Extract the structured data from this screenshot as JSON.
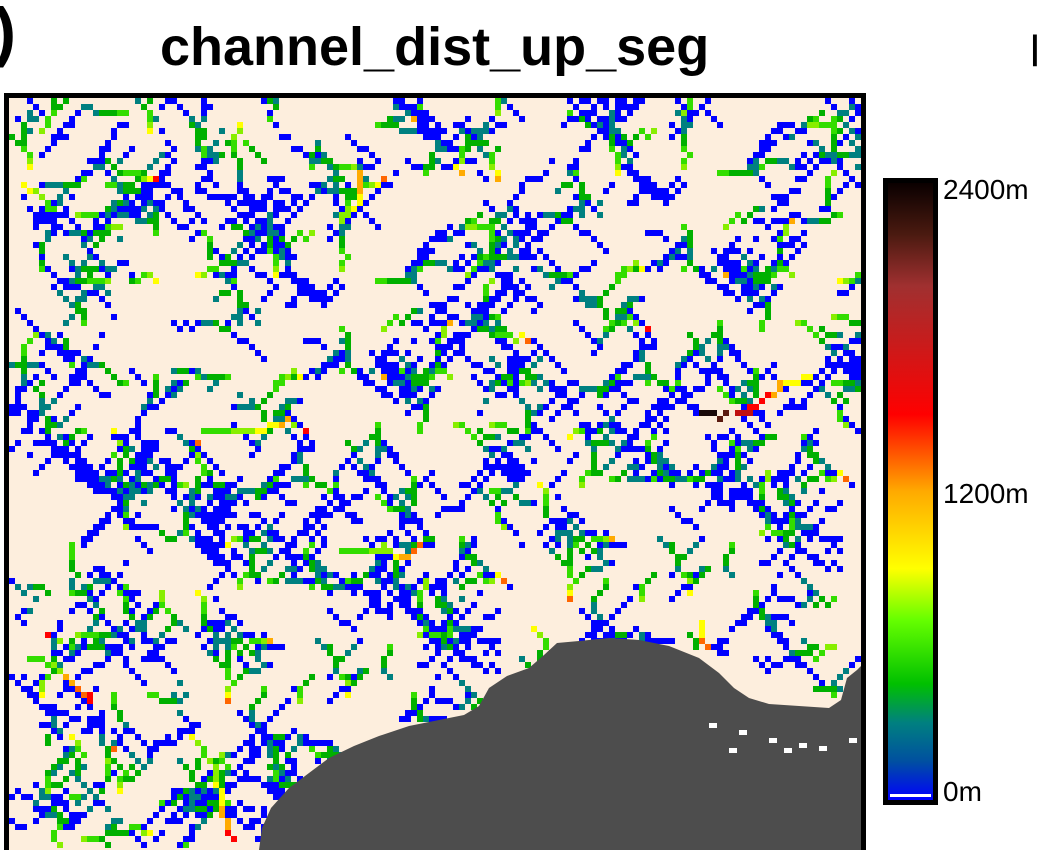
{
  "figure": {
    "panel_letter": ")",
    "title": "channel_dist_up_seg",
    "next_panel_letter": "l"
  },
  "map": {
    "background_color": "#fdeedd",
    "water_color": "#4d4d4d",
    "frame_color": "#000000",
    "channel_colors": [
      "#0000ff",
      "#008080",
      "#00b000",
      "#33dd00",
      "#88ee00",
      "#ffff00",
      "#ffaa00",
      "#ff6600",
      "#ff0000",
      "#c01010",
      "#5a1a10",
      "#1a0a0a"
    ]
  },
  "colorbar": {
    "max_label": "2400m",
    "mid_label": "1200m",
    "min_label": "0m",
    "min_value": 0,
    "mid_value": 1200,
    "max_value": 2400,
    "unit": "m",
    "stops": [
      {
        "value": 0,
        "color": "#0000ff"
      },
      {
        "value": 150,
        "color": "#0050a0"
      },
      {
        "value": 300,
        "color": "#008080"
      },
      {
        "value": 450,
        "color": "#00c000"
      },
      {
        "value": 700,
        "color": "#66ff00"
      },
      {
        "value": 900,
        "color": "#ffff00"
      },
      {
        "value": 1200,
        "color": "#ffaa00"
      },
      {
        "value": 1500,
        "color": "#ff0000"
      },
      {
        "value": 1800,
        "color": "#c41e1e"
      },
      {
        "value": 2000,
        "color": "#a03030"
      },
      {
        "value": 2200,
        "color": "#4a1a10"
      },
      {
        "value": 2400,
        "color": "#0a0000"
      }
    ]
  }
}
